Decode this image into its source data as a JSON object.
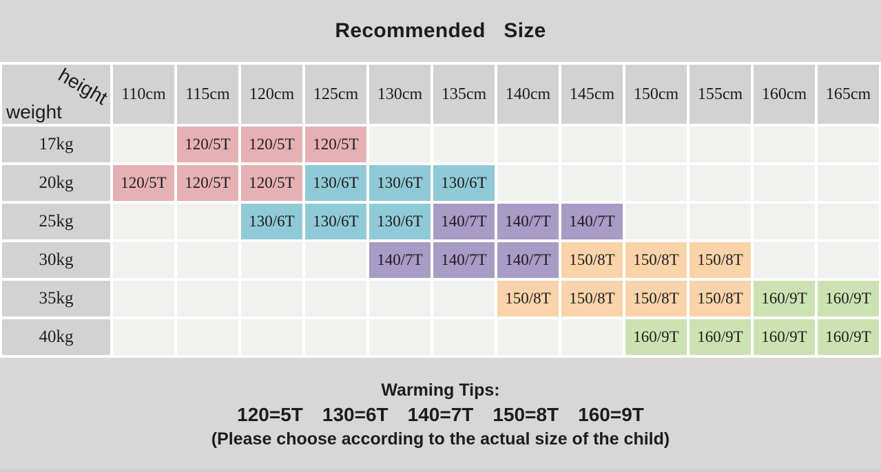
{
  "title": "Recommended Size",
  "corner": {
    "top_label": "height",
    "bottom_label": "weight"
  },
  "table": {
    "height_headers": [
      "110cm",
      "115cm",
      "120cm",
      "125cm",
      "130cm",
      "135cm",
      "140cm",
      "145cm",
      "150cm",
      "155cm",
      "160cm",
      "165cm"
    ],
    "rows": [
      {
        "weight": "17kg",
        "cells": [
          {
            "text": "",
            "color": "empty"
          },
          {
            "text": "120/5T",
            "color": "pink"
          },
          {
            "text": "120/5T",
            "color": "pink"
          },
          {
            "text": "120/5T",
            "color": "pink"
          },
          {
            "text": "",
            "color": "empty"
          },
          {
            "text": "",
            "color": "empty"
          },
          {
            "text": "",
            "color": "empty"
          },
          {
            "text": "",
            "color": "empty"
          },
          {
            "text": "",
            "color": "empty"
          },
          {
            "text": "",
            "color": "empty"
          },
          {
            "text": "",
            "color": "empty"
          },
          {
            "text": "",
            "color": "empty"
          }
        ]
      },
      {
        "weight": "20kg",
        "cells": [
          {
            "text": "120/5T",
            "color": "pink"
          },
          {
            "text": "120/5T",
            "color": "pink"
          },
          {
            "text": "120/5T",
            "color": "pink"
          },
          {
            "text": "130/6T",
            "color": "blue"
          },
          {
            "text": "130/6T",
            "color": "blue"
          },
          {
            "text": "130/6T",
            "color": "blue"
          },
          {
            "text": "",
            "color": "empty"
          },
          {
            "text": "",
            "color": "empty"
          },
          {
            "text": "",
            "color": "empty"
          },
          {
            "text": "",
            "color": "empty"
          },
          {
            "text": "",
            "color": "empty"
          },
          {
            "text": "",
            "color": "empty"
          }
        ]
      },
      {
        "weight": "25kg",
        "cells": [
          {
            "text": "",
            "color": "empty"
          },
          {
            "text": "",
            "color": "empty"
          },
          {
            "text": "130/6T",
            "color": "blue"
          },
          {
            "text": "130/6T",
            "color": "blue"
          },
          {
            "text": "130/6T",
            "color": "blue"
          },
          {
            "text": "140/7T",
            "color": "purple"
          },
          {
            "text": "140/7T",
            "color": "purple"
          },
          {
            "text": "140/7T",
            "color": "purple"
          },
          {
            "text": "",
            "color": "empty"
          },
          {
            "text": "",
            "color": "empty"
          },
          {
            "text": "",
            "color": "empty"
          },
          {
            "text": "",
            "color": "empty"
          }
        ]
      },
      {
        "weight": "30kg",
        "cells": [
          {
            "text": "",
            "color": "empty"
          },
          {
            "text": "",
            "color": "empty"
          },
          {
            "text": "",
            "color": "empty"
          },
          {
            "text": "",
            "color": "empty"
          },
          {
            "text": "140/7T",
            "color": "purple"
          },
          {
            "text": "140/7T",
            "color": "purple"
          },
          {
            "text": "140/7T",
            "color": "purple"
          },
          {
            "text": "150/8T",
            "color": "orange"
          },
          {
            "text": "150/8T",
            "color": "orange"
          },
          {
            "text": "150/8T",
            "color": "orange"
          },
          {
            "text": "",
            "color": "empty"
          },
          {
            "text": "",
            "color": "empty"
          }
        ]
      },
      {
        "weight": "35kg",
        "cells": [
          {
            "text": "",
            "color": "empty"
          },
          {
            "text": "",
            "color": "empty"
          },
          {
            "text": "",
            "color": "empty"
          },
          {
            "text": "",
            "color": "empty"
          },
          {
            "text": "",
            "color": "empty"
          },
          {
            "text": "",
            "color": "empty"
          },
          {
            "text": "150/8T",
            "color": "orange"
          },
          {
            "text": "150/8T",
            "color": "orange"
          },
          {
            "text": "150/8T",
            "color": "orange"
          },
          {
            "text": "150/8T",
            "color": "orange"
          },
          {
            "text": "160/9T",
            "color": "green"
          },
          {
            "text": "160/9T",
            "color": "green"
          }
        ]
      },
      {
        "weight": "40kg",
        "cells": [
          {
            "text": "",
            "color": "empty"
          },
          {
            "text": "",
            "color": "empty"
          },
          {
            "text": "",
            "color": "empty"
          },
          {
            "text": "",
            "color": "empty"
          },
          {
            "text": "",
            "color": "empty"
          },
          {
            "text": "",
            "color": "empty"
          },
          {
            "text": "",
            "color": "empty"
          },
          {
            "text": "",
            "color": "empty"
          },
          {
            "text": "160/9T",
            "color": "green"
          },
          {
            "text": "160/9T",
            "color": "green"
          },
          {
            "text": "160/9T",
            "color": "green"
          },
          {
            "text": "160/9T",
            "color": "green"
          }
        ]
      }
    ]
  },
  "tips": {
    "heading": "Warming Tips:",
    "sizes": [
      "120=5T",
      "130=6T",
      "140=7T",
      "150=8T",
      "160=9T"
    ],
    "note": "(Please choose according to the actual size of the child)"
  },
  "colors": {
    "pink": "#e5b1b4",
    "blue": "#90cad7",
    "purple": "#a89bc6",
    "orange": "#f9d3aa",
    "green": "#cce2b2",
    "empty": "#f1f1f0",
    "header_gray": "#d2d2d2",
    "band_gray": "#d7d7d7",
    "grid_white": "#ffffff"
  },
  "chart_data": {
    "type": "table",
    "title": "Recommended Size",
    "columns": [
      "weight",
      "110cm",
      "115cm",
      "120cm",
      "125cm",
      "130cm",
      "135cm",
      "140cm",
      "145cm",
      "150cm",
      "155cm",
      "160cm",
      "165cm"
    ],
    "rows": [
      [
        "17kg",
        "",
        "120/5T",
        "120/5T",
        "120/5T",
        "",
        "",
        "",
        "",
        "",
        "",
        "",
        ""
      ],
      [
        "20kg",
        "120/5T",
        "120/5T",
        "120/5T",
        "130/6T",
        "130/6T",
        "130/6T",
        "",
        "",
        "",
        "",
        "",
        ""
      ],
      [
        "25kg",
        "",
        "",
        "130/6T",
        "130/6T",
        "130/6T",
        "140/7T",
        "140/7T",
        "140/7T",
        "",
        "",
        "",
        ""
      ],
      [
        "30kg",
        "",
        "",
        "",
        "",
        "140/7T",
        "140/7T",
        "140/7T",
        "150/8T",
        "150/8T",
        "150/8T",
        "",
        ""
      ],
      [
        "35kg",
        "",
        "",
        "",
        "",
        "",
        "",
        "150/8T",
        "150/8T",
        "150/8T",
        "150/8T",
        "160/9T",
        "160/9T"
      ],
      [
        "40kg",
        "",
        "",
        "",
        "",
        "",
        "",
        "",
        "",
        "160/9T",
        "160/9T",
        "160/9T",
        "160/9T"
      ]
    ],
    "annotations": [
      "Warming Tips:",
      "120=5T 130=6T 140=7T 150=8T 160=9T",
      "(Please choose according to the actual size of the child)"
    ],
    "cell_color_legend": {
      "120/5T": "pink",
      "130/6T": "blue",
      "140/7T": "purple",
      "150/8T": "orange",
      "160/9T": "green"
    }
  }
}
